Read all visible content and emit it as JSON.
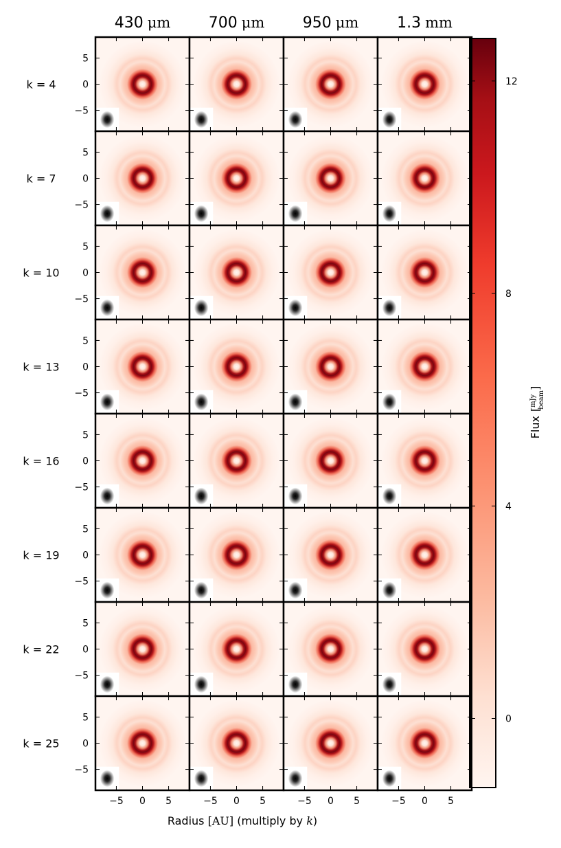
{
  "chart_data": {
    "type": "heatmap",
    "column_titles": [
      {
        "num": "430",
        "unit": "μm"
      },
      {
        "num": "700",
        "unit": "μm"
      },
      {
        "num": "950",
        "unit": "μm"
      },
      {
        "num": "1.3",
        "unit": "mm"
      }
    ],
    "row_labels": [
      "k = 4",
      "k = 7",
      "k = 10",
      "k = 13",
      "k = 16",
      "k = 19",
      "k = 22",
      "k = 25"
    ],
    "x_ticks": [
      -5,
      0,
      5
    ],
    "y_ticks": [
      5,
      0,
      -5
    ],
    "axis_range": [
      -9,
      9
    ],
    "xlabel": {
      "pre": "Radius ",
      "unit": "[AU]",
      "post": " (multiply by ",
      "var": "k",
      "close": ")"
    },
    "colorbar": {
      "label": "Flux",
      "unit_numerator": "mJy",
      "unit_denominator": "beam",
      "range": [
        -1.3,
        12.8
      ],
      "ticks": [
        0,
        4,
        8,
        12
      ]
    },
    "colors": {
      "low": "#fff5f0",
      "mid": "#fb6a4a",
      "high_1": "#cb181d",
      "high_2": "#67000d",
      "beam": "#111111",
      "frame": "#000000"
    },
    "ring_structure": {
      "ring_radius_au": 3.2,
      "inner_hole": "bright center",
      "outer_halo": "faint rings"
    }
  }
}
